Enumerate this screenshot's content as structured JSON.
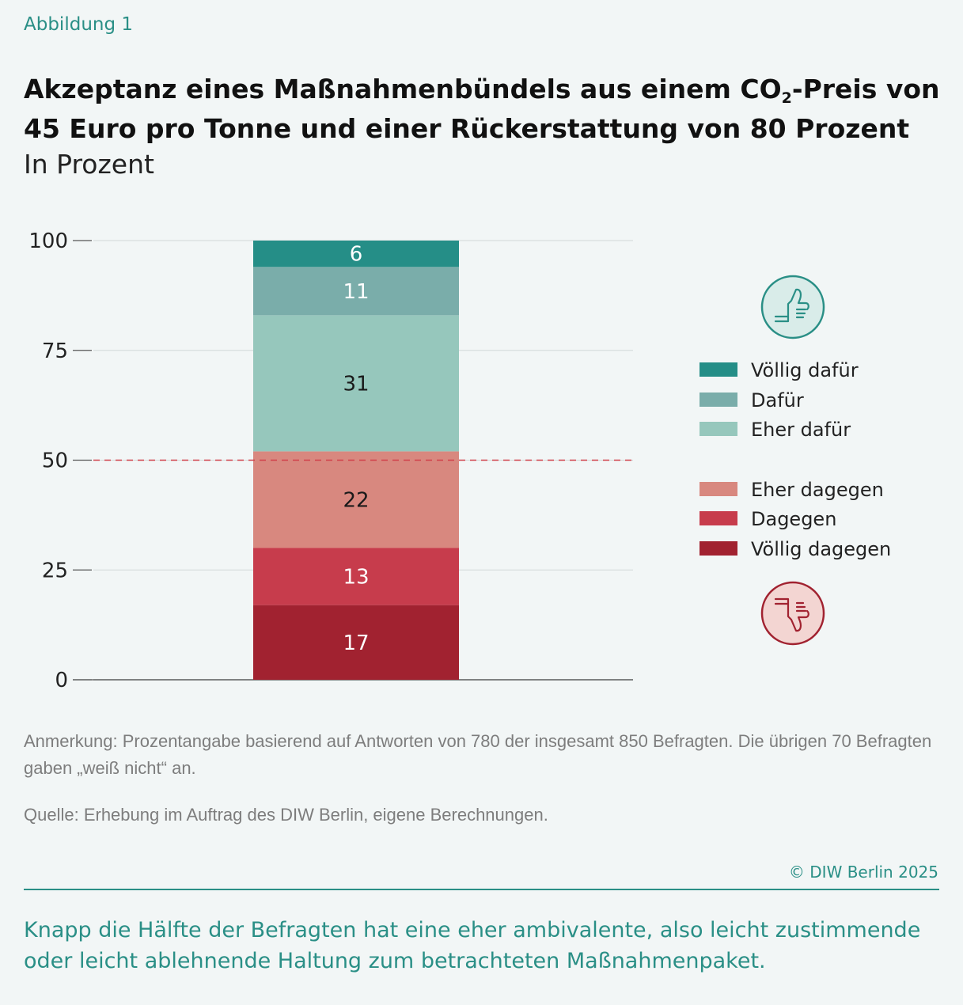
{
  "figure_label": "Abbildung 1",
  "title_part1": "Akzeptanz eines Maßnahmenbündels aus einem CO",
  "title_sub": "2",
  "title_part2": "-Preis von 45 Euro pro Tonne und einer Rückerstattung von 80 Prozent",
  "subtitle": "In Prozent",
  "chart_data": {
    "type": "bar",
    "stacked": true,
    "categories": [
      ""
    ],
    "ylim": [
      0,
      100
    ],
    "yticks": [
      0,
      25,
      50,
      75,
      100
    ],
    "reference_line": 50,
    "grid": true,
    "legend_position": "right",
    "series": [
      {
        "name": "Völlig dagegen",
        "values": [
          17
        ],
        "color": "#a12230",
        "label_color": "#ffffff"
      },
      {
        "name": "Dagegen",
        "values": [
          13
        ],
        "color": "#c73c4c",
        "label_color": "#ffffff"
      },
      {
        "name": "Eher dagegen",
        "values": [
          22
        ],
        "color": "#d8887f",
        "label_color": "#1a1a1a"
      },
      {
        "name": "Eher dafür",
        "values": [
          31
        ],
        "color": "#96c7bc",
        "label_color": "#1a1a1a"
      },
      {
        "name": "Dafür",
        "values": [
          11
        ],
        "color": "#7aadaa",
        "label_color": "#ffffff"
      },
      {
        "name": "Völlig dafür",
        "values": [
          6
        ],
        "color": "#258e87",
        "label_color": "#ffffff"
      }
    ],
    "legend_order": [
      "Völlig dafür",
      "Dafür",
      "Eher dafür",
      "Eher dagegen",
      "Dagegen",
      "Völlig dagegen"
    ],
    "icons": [
      "thumbs-up-icon",
      "thumbs-down-icon"
    ]
  },
  "colors": {
    "accent": "#2a8f86",
    "reference_line": "#d0414a",
    "thumbs_down": "#a12230"
  },
  "note": "Anmerkung: Prozentangabe basierend auf Antworten von 780 der insgesamt 850 Befragten. Die übrigen 70 Befrag­ten gaben „weiß nicht“ an.",
  "source": "Quelle: Erhebung im Auftrag des DIW Berlin, eigene Berechnungen.",
  "copyright": "© DIW Berlin 2025",
  "summary": "Knapp die Hälfte der Befragten hat eine eher ambivalente, also leicht zustimmende oder leicht ablehnende Haltung zum betrachteten Maßnahmenpaket."
}
